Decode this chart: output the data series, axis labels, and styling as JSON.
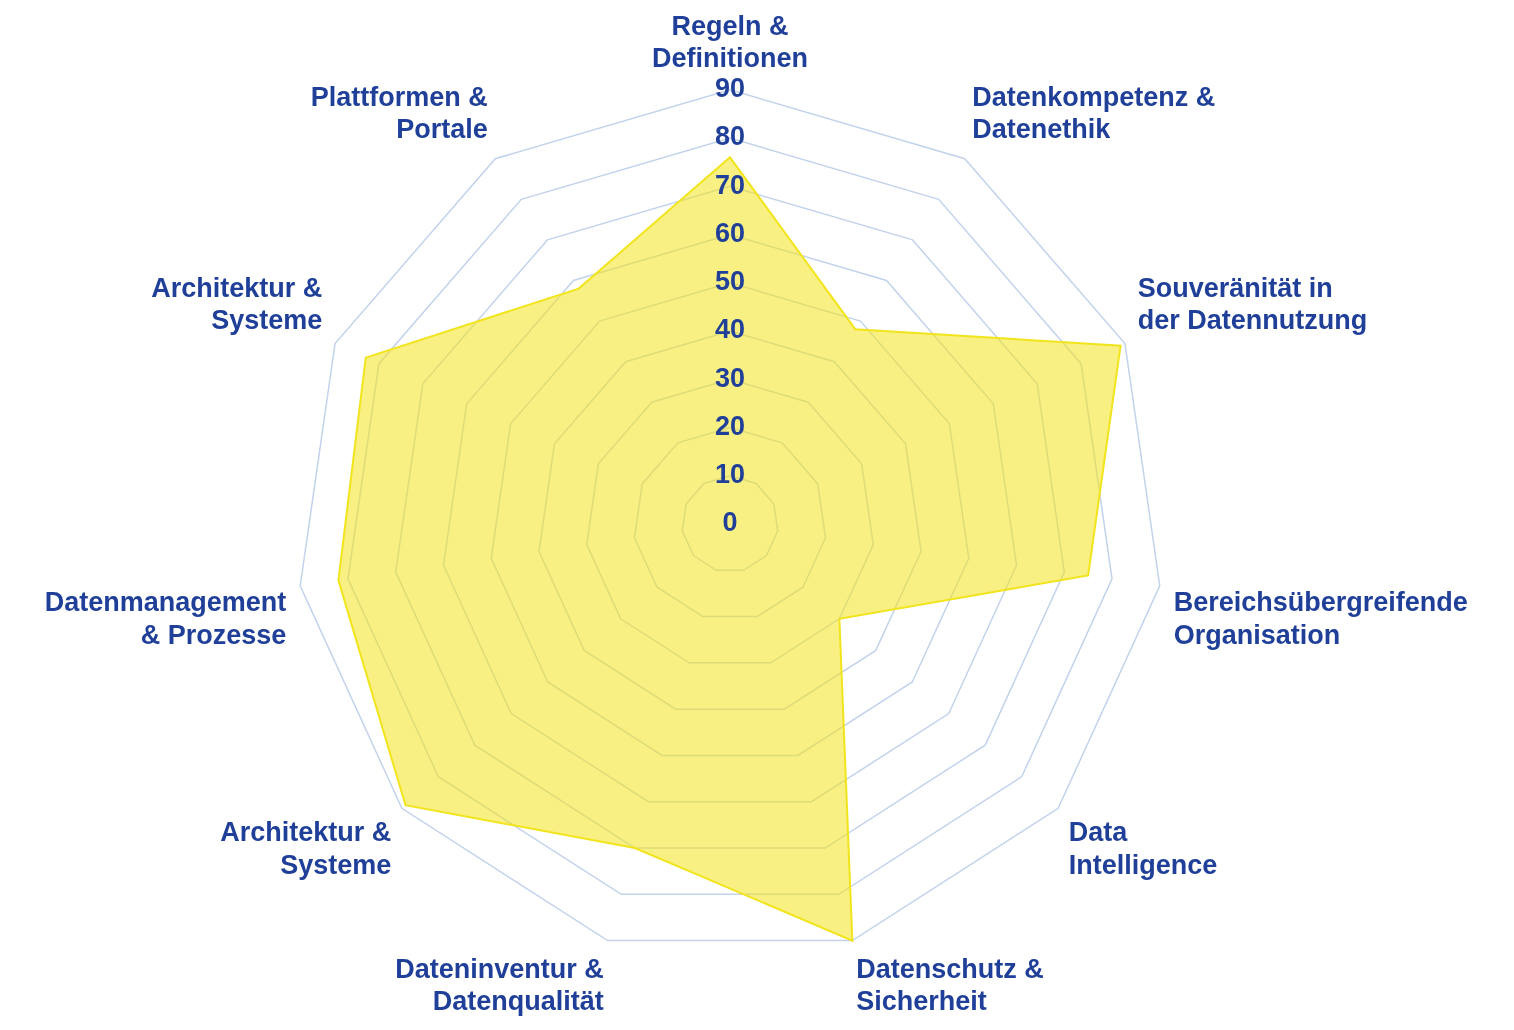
{
  "chart_data": {
    "type": "radar",
    "categories": [
      "Regeln & Definitionen",
      "Datenkompetenz & Datenethik",
      "Souveränität in der Datennutzung",
      "Bereichsübergreifende Organisation",
      "Data Intelligence",
      "Datenschutz & Sicherheit",
      "Dateninventur & Datenqualität",
      "Architektur & Systeme",
      "Datenmanagement & Prozesse",
      "Architektur & Systeme",
      "Plattformen & Portale"
    ],
    "series": [
      {
        "color": "#f2e41c",
        "values": [
          76,
          48,
          89,
          75,
          30,
          90,
          70,
          89,
          82,
          83,
          58
        ]
      }
    ],
    "ylim": [
      0,
      90
    ],
    "yticks": [
      0,
      10,
      20,
      30,
      40,
      50,
      60,
      70,
      80,
      90
    ],
    "grid": true,
    "marker": "none",
    "legend": false
  }
}
